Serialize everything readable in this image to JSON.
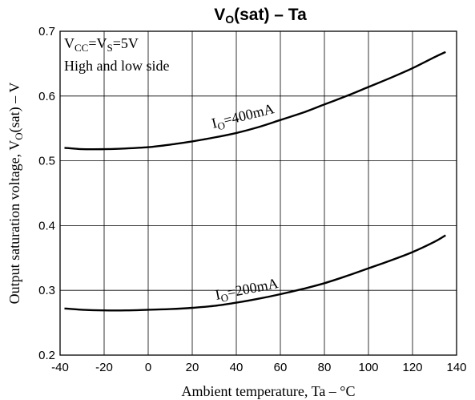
{
  "chart_data": {
    "type": "line",
    "title": "VO(sat) – Ta",
    "title_parts": {
      "main": "V",
      "sub": "O",
      "rest": "(sat)  –  Ta"
    },
    "xlabel": "Ambient temperature, Ta  –  °C",
    "ylabel_parts": {
      "main": "Output saturation voltage, V",
      "sub": "O",
      "rest": "(sat)  –  V"
    },
    "xlim": [
      -40,
      140
    ],
    "ylim": [
      0.2,
      0.7
    ],
    "x_ticks": [
      -40,
      -20,
      0,
      20,
      40,
      60,
      80,
      100,
      120,
      140
    ],
    "y_ticks": [
      0.2,
      0.3,
      0.4,
      0.5,
      0.6,
      0.7
    ],
    "grid": true,
    "conditions": {
      "line1": {
        "p1": "V",
        "s1": "CC",
        "p2": "=V",
        "s2": "S",
        "p3": "=5V"
      },
      "line2": "High and low side"
    },
    "series": [
      {
        "label_parts": {
          "main": "I",
          "sub": "O",
          "rest": "=400mA"
        },
        "x": [
          -38,
          -30,
          -20,
          -10,
          0,
          10,
          20,
          30,
          40,
          50,
          60,
          70,
          80,
          90,
          100,
          110,
          120,
          130,
          135
        ],
        "y": [
          0.52,
          0.518,
          0.518,
          0.519,
          0.521,
          0.525,
          0.53,
          0.536,
          0.543,
          0.552,
          0.563,
          0.574,
          0.587,
          0.6,
          0.614,
          0.628,
          0.643,
          0.66,
          0.668
        ]
      },
      {
        "label_parts": {
          "main": "I",
          "sub": "O",
          "rest": "=200mA"
        },
        "x": [
          -38,
          -30,
          -20,
          -10,
          0,
          10,
          20,
          30,
          40,
          50,
          60,
          70,
          80,
          90,
          100,
          110,
          120,
          130,
          135
        ],
        "y": [
          0.272,
          0.27,
          0.269,
          0.269,
          0.27,
          0.271,
          0.273,
          0.276,
          0.281,
          0.287,
          0.294,
          0.302,
          0.311,
          0.322,
          0.334,
          0.346,
          0.359,
          0.375,
          0.385
        ]
      }
    ]
  }
}
